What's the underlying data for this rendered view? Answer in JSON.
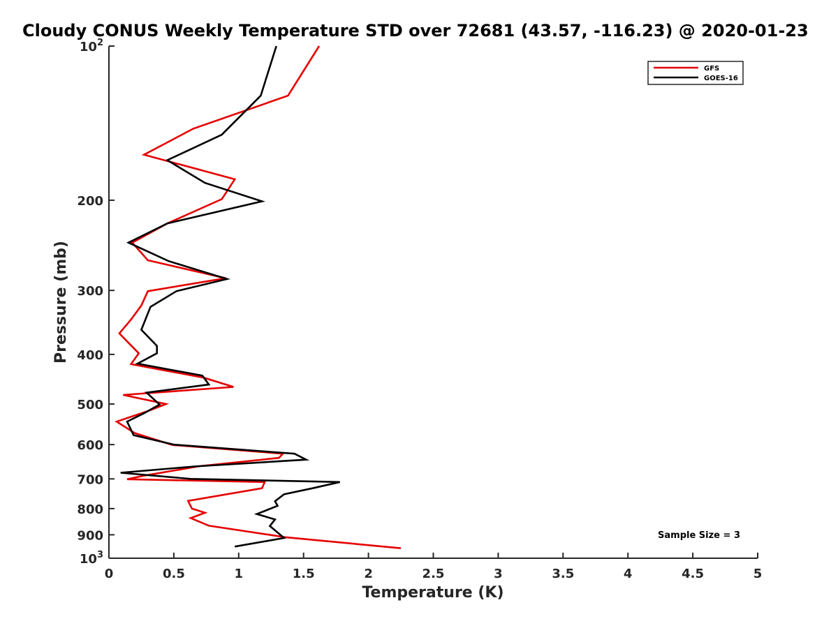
{
  "chart_data": {
    "type": "line",
    "title": "Cloudy CONUS Weekly Temperature STD over 72681 (43.57, -116.23) @ 2020-01-23",
    "xlabel": "Temperature (K)",
    "ylabel": "Pressure (mb)",
    "xlim": [
      0,
      5
    ],
    "ylim": [
      100,
      1000
    ],
    "y_scale": "log",
    "y_reversed": true,
    "grid": false,
    "x_ticks": [
      {
        "value": 0,
        "label": "0"
      },
      {
        "value": 0.5,
        "label": "0.5"
      },
      {
        "value": 1,
        "label": "1"
      },
      {
        "value": 1.5,
        "label": "1.5"
      },
      {
        "value": 2,
        "label": "2"
      },
      {
        "value": 2.5,
        "label": "2.5"
      },
      {
        "value": 3,
        "label": "3"
      },
      {
        "value": 3.5,
        "label": "3.5"
      },
      {
        "value": 4,
        "label": "4"
      },
      {
        "value": 4.5,
        "label": "4.5"
      },
      {
        "value": 5,
        "label": "5"
      }
    ],
    "y_ticks": [
      {
        "value": 100,
        "label": "10",
        "exp": "2"
      },
      {
        "value": 200,
        "label": "200"
      },
      {
        "value": 300,
        "label": "300"
      },
      {
        "value": 400,
        "label": "400"
      },
      {
        "value": 500,
        "label": "500"
      },
      {
        "value": 600,
        "label": "600"
      },
      {
        "value": 700,
        "label": "700"
      },
      {
        "value": 800,
        "label": "800"
      },
      {
        "value": 900,
        "label": "900"
      },
      {
        "value": 1000,
        "label": "10",
        "exp": "3"
      }
    ],
    "legend_position": "top-right",
    "annotation": "Sample Size = 3",
    "series": [
      {
        "name": "GFS",
        "color": "#e50000",
        "points": [
          [
            1.62,
            100
          ],
          [
            1.38,
            125
          ],
          [
            0.65,
            145
          ],
          [
            0.27,
            163
          ],
          [
            0.97,
            182
          ],
          [
            0.87,
            199
          ],
          [
            0.45,
            222
          ],
          [
            0.18,
            242
          ],
          [
            0.3,
            262
          ],
          [
            0.9,
            284
          ],
          [
            0.3,
            301
          ],
          [
            0.25,
            321
          ],
          [
            0.17,
            342
          ],
          [
            0.08,
            364
          ],
          [
            0.23,
            398
          ],
          [
            0.17,
            418
          ],
          [
            0.73,
            444
          ],
          [
            0.96,
            463
          ],
          [
            0.11,
            480
          ],
          [
            0.44,
            500
          ],
          [
            0.3,
            516
          ],
          [
            0.06,
            541
          ],
          [
            0.2,
            570
          ],
          [
            0.49,
            601
          ],
          [
            1.34,
            625
          ],
          [
            1.31,
            637
          ],
          [
            0.7,
            661
          ],
          [
            0.27,
            690
          ],
          [
            0.14,
            701
          ],
          [
            1.2,
            710
          ],
          [
            1.18,
            730
          ],
          [
            0.61,
            773
          ],
          [
            0.64,
            800
          ],
          [
            0.74,
            815
          ],
          [
            0.63,
            835
          ],
          [
            0.77,
            864
          ],
          [
            1.36,
            910
          ],
          [
            2.25,
            956
          ]
        ]
      },
      {
        "name": "GOES-16",
        "color": "#000000",
        "points": [
          [
            1.29,
            100
          ],
          [
            1.17,
            125
          ],
          [
            0.87,
            149
          ],
          [
            0.45,
            167
          ],
          [
            0.74,
            185
          ],
          [
            1.18,
            201
          ],
          [
            0.45,
            222
          ],
          [
            0.15,
            242
          ],
          [
            0.46,
            263
          ],
          [
            0.91,
            285
          ],
          [
            0.52,
            301
          ],
          [
            0.32,
            323
          ],
          [
            0.25,
            358
          ],
          [
            0.37,
            385
          ],
          [
            0.37,
            398
          ],
          [
            0.22,
            417
          ],
          [
            0.72,
            440
          ],
          [
            0.77,
            458
          ],
          [
            0.29,
            475
          ],
          [
            0.39,
            501
          ],
          [
            0.27,
            521
          ],
          [
            0.14,
            541
          ],
          [
            0.19,
            575
          ],
          [
            0.5,
            600
          ],
          [
            1.43,
            625
          ],
          [
            1.52,
            642
          ],
          [
            0.66,
            662
          ],
          [
            0.09,
            681
          ],
          [
            0.63,
            700
          ],
          [
            1.78,
            710
          ],
          [
            1.57,
            730
          ],
          [
            1.35,
            750
          ],
          [
            1.28,
            774
          ],
          [
            1.3,
            790
          ],
          [
            1.14,
            820
          ],
          [
            1.28,
            840
          ],
          [
            1.24,
            865
          ],
          [
            1.35,
            913
          ],
          [
            0.97,
            949
          ]
        ]
      }
    ]
  }
}
